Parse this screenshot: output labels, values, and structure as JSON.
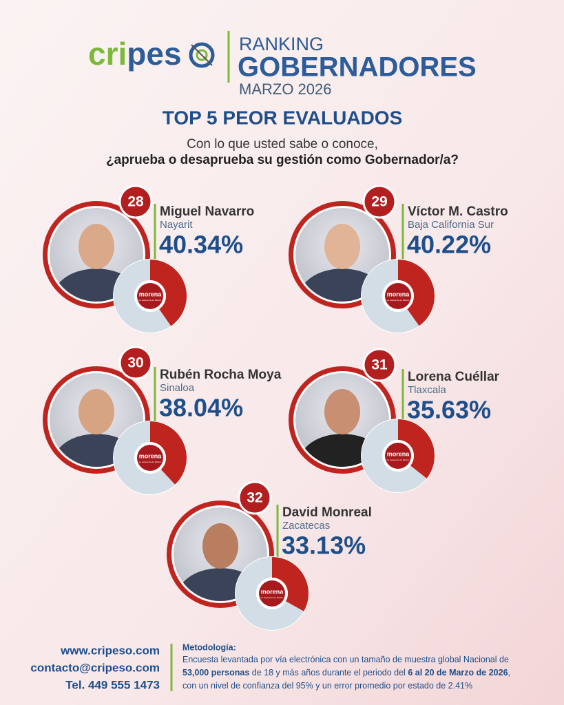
{
  "header": {
    "logo_parts": [
      "cri",
      "pes"
    ],
    "ranking": "RANKING",
    "title": "GOBERNADORES",
    "date": "MARZO 2026",
    "heading": "TOP 5 PEOR EVALUADOS",
    "question_line1": "Con lo que usted sabe o conoce,",
    "question_line2": "¿aprueba o desaprueba su gestión como Gobernador/a?"
  },
  "party": {
    "name": "morena",
    "slogan": "La esperanza de México"
  },
  "entries": [
    {
      "rank": 28,
      "name": "Miguel Navarro",
      "state": "Nayarit",
      "approval": {
        "value": 40.34,
        "label": "40.34%"
      }
    },
    {
      "rank": 29,
      "name": "Víctor M. Castro",
      "state": "Baja California Sur",
      "approval": {
        "value": 40.22,
        "label": "40.22%"
      }
    },
    {
      "rank": 30,
      "name": "Rubén Rocha Moya",
      "state": "Sinaloa",
      "approval": {
        "value": 38.04,
        "label": "38.04%"
      }
    },
    {
      "rank": 31,
      "name": "Lorena Cuéllar",
      "state": "Tlaxcala",
      "approval": {
        "value": 35.63,
        "label": "35.63%"
      }
    },
    {
      "rank": 32,
      "name": "David Monreal",
      "state": "Zacatecas",
      "approval": {
        "value": 33.13,
        "label": "33.13%"
      }
    }
  ],
  "footer": {
    "web": "www.cripeso.com",
    "email": "contacto@cripeso.com",
    "phone": "Tel. 449 555 1473",
    "methodology_title": "Metodología:",
    "methodology_lines": [
      [
        {
          "text": "Encuesta levantada por vía electrónica con un tamaño de muestra global Nacional de",
          "bold": false
        }
      ],
      [
        {
          "text": "53,000 personas",
          "bold": true
        },
        {
          "text": " de 18 y más años durante el periodo del ",
          "bold": false
        },
        {
          "text": "6 al 20 de Marzo de 2026",
          "bold": true
        },
        {
          "text": ",",
          "bold": false
        }
      ],
      [
        {
          "text": "con un nivel de confianza del 95% y un error promedio por estado de 2.41%",
          "bold": false
        }
      ]
    ]
  }
}
